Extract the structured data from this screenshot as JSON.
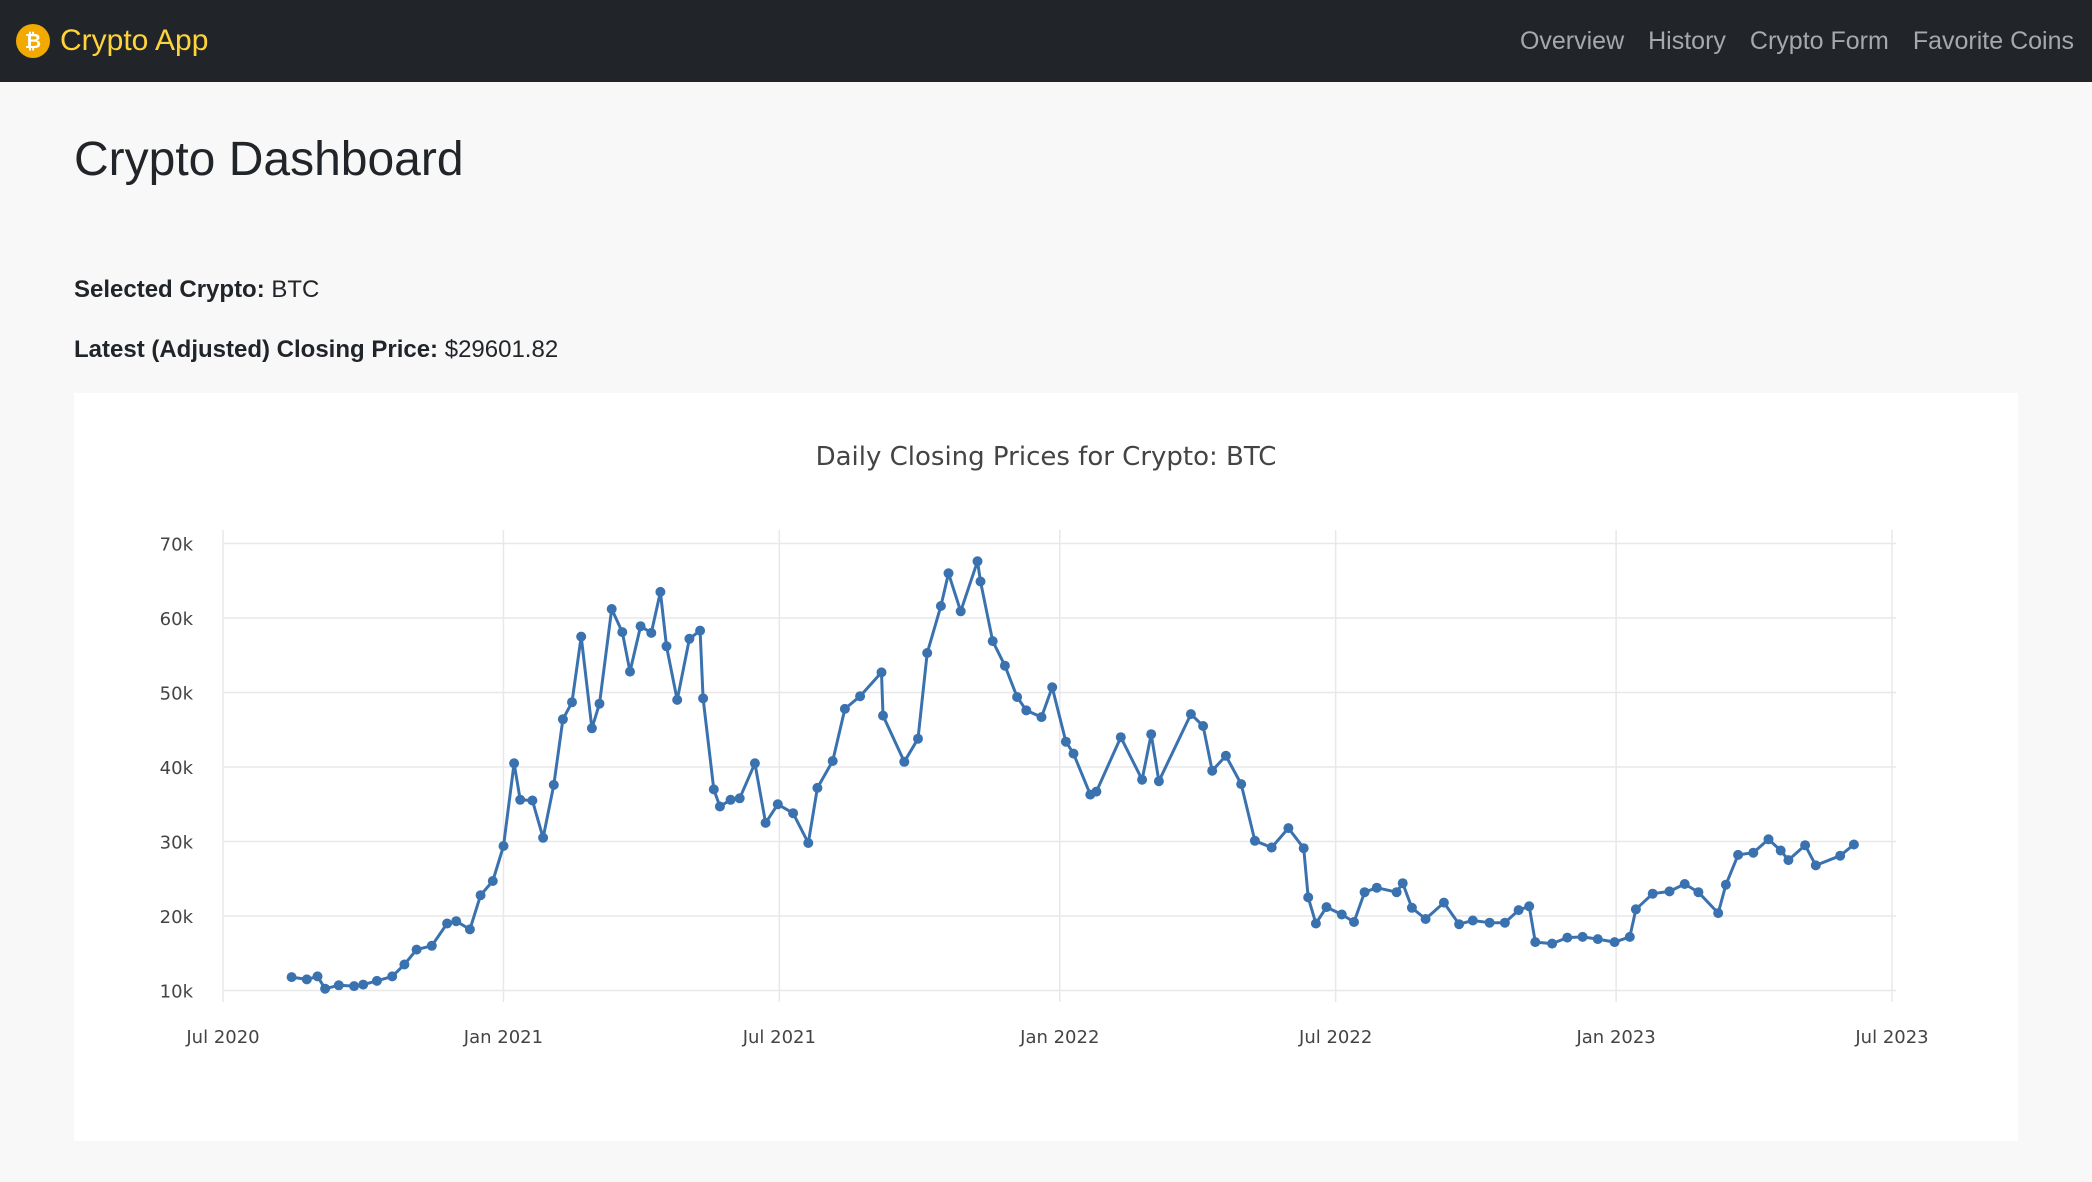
{
  "navbar": {
    "brand": "Crypto App",
    "brand_icon": "bitcoin-icon",
    "links": [
      "Overview",
      "History",
      "Crypto Form",
      "Favorite Coins"
    ]
  },
  "page": {
    "title": "Crypto Dashboard",
    "selected_label": "Selected Crypto:",
    "selected_value": "BTC",
    "price_label": "Latest (Adjusted) Closing Price:",
    "price_value": "$29601.82"
  },
  "colors": {
    "navbar_bg": "#212529",
    "brand": "#ffd43b",
    "line": "#3a72b0"
  },
  "chart_data": {
    "type": "line",
    "title": "Daily Closing Prices for Crypto: BTC",
    "xlabel": "",
    "ylabel": "",
    "x_range": [
      "2020-07-01",
      "2023-07-01"
    ],
    "ylim": [
      9000,
      71000
    ],
    "y_ticks": [
      10000,
      20000,
      30000,
      40000,
      50000,
      60000,
      70000
    ],
    "y_tick_labels": [
      "10k",
      "20k",
      "30k",
      "40k",
      "50k",
      "60k",
      "70k"
    ],
    "x_ticks": [
      "2020-07-01",
      "2021-01-01",
      "2021-07-01",
      "2022-01-01",
      "2022-07-01",
      "2023-01-01",
      "2023-07-01"
    ],
    "x_tick_labels": [
      "Jul 2020",
      "Jan 2021",
      "Jul 2021",
      "Jan 2022",
      "Jul 2022",
      "Jan 2023",
      "Jul 2023"
    ],
    "grid": true,
    "series": [
      {
        "name": "",
        "points": [
          [
            "2020-08-15",
            11800
          ],
          [
            "2020-08-25",
            11500
          ],
          [
            "2020-09-01",
            11900
          ],
          [
            "2020-09-06",
            10250
          ],
          [
            "2020-09-15",
            10700
          ],
          [
            "2020-09-25",
            10600
          ],
          [
            "2020-10-01",
            10800
          ],
          [
            "2020-10-10",
            11300
          ],
          [
            "2020-10-20",
            11900
          ],
          [
            "2020-10-28",
            13500
          ],
          [
            "2020-11-05",
            15500
          ],
          [
            "2020-11-15",
            16000
          ],
          [
            "2020-11-25",
            19000
          ],
          [
            "2020-12-01",
            19300
          ],
          [
            "2020-12-10",
            18200
          ],
          [
            "2020-12-17",
            22800
          ],
          [
            "2020-12-25",
            24700
          ],
          [
            "2021-01-01",
            29400
          ],
          [
            "2021-01-08",
            40500
          ],
          [
            "2021-01-12",
            35600
          ],
          [
            "2021-01-20",
            35500
          ],
          [
            "2021-01-27",
            30500
          ],
          [
            "2021-02-03",
            37600
          ],
          [
            "2021-02-09",
            46400
          ],
          [
            "2021-02-15",
            48700
          ],
          [
            "2021-02-21",
            57500
          ],
          [
            "2021-02-28",
            45200
          ],
          [
            "2021-03-05",
            48500
          ],
          [
            "2021-03-13",
            61200
          ],
          [
            "2021-03-20",
            58100
          ],
          [
            "2021-03-25",
            52800
          ],
          [
            "2021-04-01",
            58900
          ],
          [
            "2021-04-08",
            58000
          ],
          [
            "2021-04-14",
            63500
          ],
          [
            "2021-04-18",
            56200
          ],
          [
            "2021-04-25",
            49000
          ],
          [
            "2021-05-03",
            57200
          ],
          [
            "2021-05-10",
            58300
          ],
          [
            "2021-05-12",
            49200
          ],
          [
            "2021-05-19",
            37000
          ],
          [
            "2021-05-23",
            34700
          ],
          [
            "2021-05-30",
            35600
          ],
          [
            "2021-06-05",
            35800
          ],
          [
            "2021-06-15",
            40500
          ],
          [
            "2021-06-22",
            32500
          ],
          [
            "2021-06-30",
            35000
          ],
          [
            "2021-07-10",
            33800
          ],
          [
            "2021-07-20",
            29800
          ],
          [
            "2021-07-26",
            37200
          ],
          [
            "2021-08-05",
            40800
          ],
          [
            "2021-08-13",
            47800
          ],
          [
            "2021-08-23",
            49500
          ],
          [
            "2021-09-06",
            52700
          ],
          [
            "2021-09-07",
            46900
          ],
          [
            "2021-09-21",
            40700
          ],
          [
            "2021-09-30",
            43800
          ],
          [
            "2021-10-06",
            55300
          ],
          [
            "2021-10-15",
            61600
          ],
          [
            "2021-10-20",
            66000
          ],
          [
            "2021-10-28",
            60900
          ],
          [
            "2021-11-08",
            67600
          ],
          [
            "2021-11-10",
            64900
          ],
          [
            "2021-11-18",
            56900
          ],
          [
            "2021-11-26",
            53600
          ],
          [
            "2021-12-04",
            49400
          ],
          [
            "2021-12-10",
            47600
          ],
          [
            "2021-12-20",
            46700
          ],
          [
            "2021-12-27",
            50700
          ],
          [
            "2022-01-05",
            43400
          ],
          [
            "2022-01-10",
            41800
          ],
          [
            "2022-01-21",
            36300
          ],
          [
            "2022-01-25",
            36700
          ],
          [
            "2022-02-10",
            44000
          ],
          [
            "2022-02-24",
            38300
          ],
          [
            "2022-03-02",
            44400
          ],
          [
            "2022-03-07",
            38100
          ],
          [
            "2022-03-28",
            47100
          ],
          [
            "2022-04-05",
            45500
          ],
          [
            "2022-04-11",
            39500
          ],
          [
            "2022-04-20",
            41500
          ],
          [
            "2022-04-30",
            37700
          ],
          [
            "2022-05-09",
            30100
          ],
          [
            "2022-05-20",
            29200
          ],
          [
            "2022-05-31",
            31800
          ],
          [
            "2022-06-10",
            29100
          ],
          [
            "2022-06-13",
            22500
          ],
          [
            "2022-06-18",
            19000
          ],
          [
            "2022-06-25",
            21200
          ],
          [
            "2022-07-05",
            20200
          ],
          [
            "2022-07-13",
            19200
          ],
          [
            "2022-07-20",
            23200
          ],
          [
            "2022-07-28",
            23800
          ],
          [
            "2022-08-10",
            23200
          ],
          [
            "2022-08-14",
            24400
          ],
          [
            "2022-08-20",
            21100
          ],
          [
            "2022-08-29",
            19600
          ],
          [
            "2022-09-10",
            21800
          ],
          [
            "2022-09-20",
            18900
          ],
          [
            "2022-09-29",
            19400
          ],
          [
            "2022-10-10",
            19100
          ],
          [
            "2022-10-20",
            19100
          ],
          [
            "2022-10-29",
            20800
          ],
          [
            "2022-11-05",
            21300
          ],
          [
            "2022-11-09",
            16500
          ],
          [
            "2022-11-20",
            16300
          ],
          [
            "2022-11-30",
            17100
          ],
          [
            "2022-12-10",
            17200
          ],
          [
            "2022-12-20",
            16900
          ],
          [
            "2022-12-31",
            16500
          ],
          [
            "2023-01-10",
            17200
          ],
          [
            "2023-01-14",
            20900
          ],
          [
            "2023-01-25",
            23000
          ],
          [
            "2023-02-05",
            23300
          ],
          [
            "2023-02-15",
            24300
          ],
          [
            "2023-02-24",
            23200
          ],
          [
            "2023-03-09",
            20400
          ],
          [
            "2023-03-14",
            24200
          ],
          [
            "2023-03-22",
            28200
          ],
          [
            "2023-04-01",
            28500
          ],
          [
            "2023-04-11",
            30300
          ],
          [
            "2023-04-19",
            28800
          ],
          [
            "2023-04-24",
            27500
          ],
          [
            "2023-05-05",
            29500
          ],
          [
            "2023-05-12",
            26800
          ],
          [
            "2023-05-28",
            28100
          ],
          [
            "2023-06-06",
            29601.82
          ]
        ]
      }
    ]
  }
}
